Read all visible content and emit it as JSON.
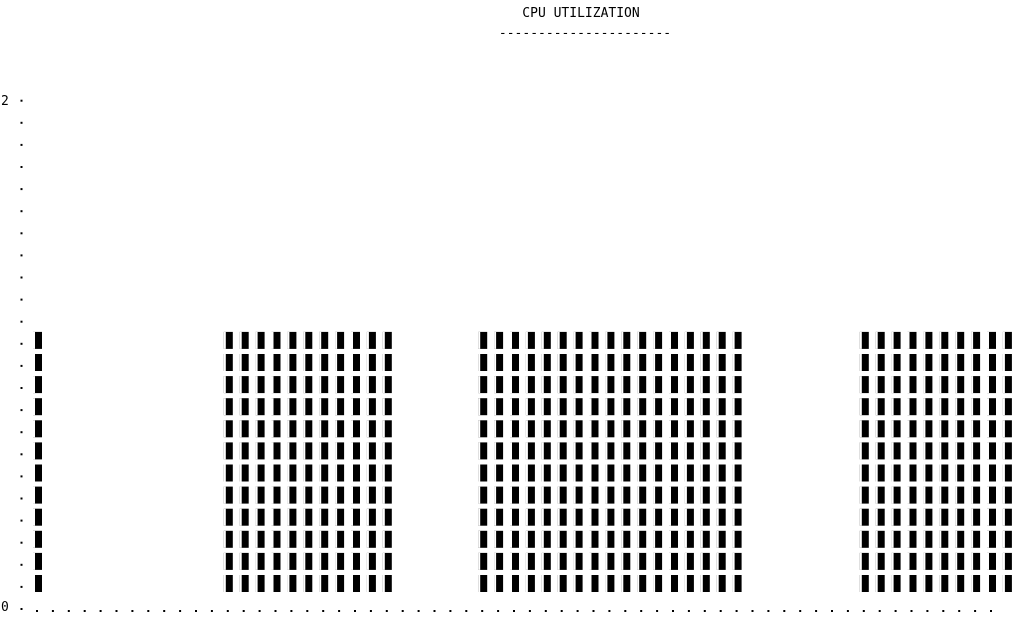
{
  "chart_data": {
    "type": "bar",
    "title": "CPU UTILIZATION",
    "title_underline": "----------------------",
    "xlabel": "",
    "ylabel": "",
    "ylim": [
      0,
      2
    ],
    "y_tick_labels": [
      "2",
      "0"
    ],
    "grid": false,
    "values": [
      1,
      0,
      0,
      0,
      0,
      0,
      0,
      0,
      0,
      0,
      0,
      0,
      1,
      1,
      1,
      1,
      1,
      1,
      1,
      1,
      1,
      1,
      1,
      0,
      0,
      0,
      0,
      0,
      1,
      1,
      1,
      1,
      1,
      1,
      1,
      1,
      1,
      1,
      1,
      1,
      1,
      1,
      1,
      1,
      1,
      0,
      0,
      0,
      0,
      0,
      0,
      0,
      1,
      1,
      1,
      1,
      1,
      1,
      1,
      1,
      1,
      1
    ]
  }
}
